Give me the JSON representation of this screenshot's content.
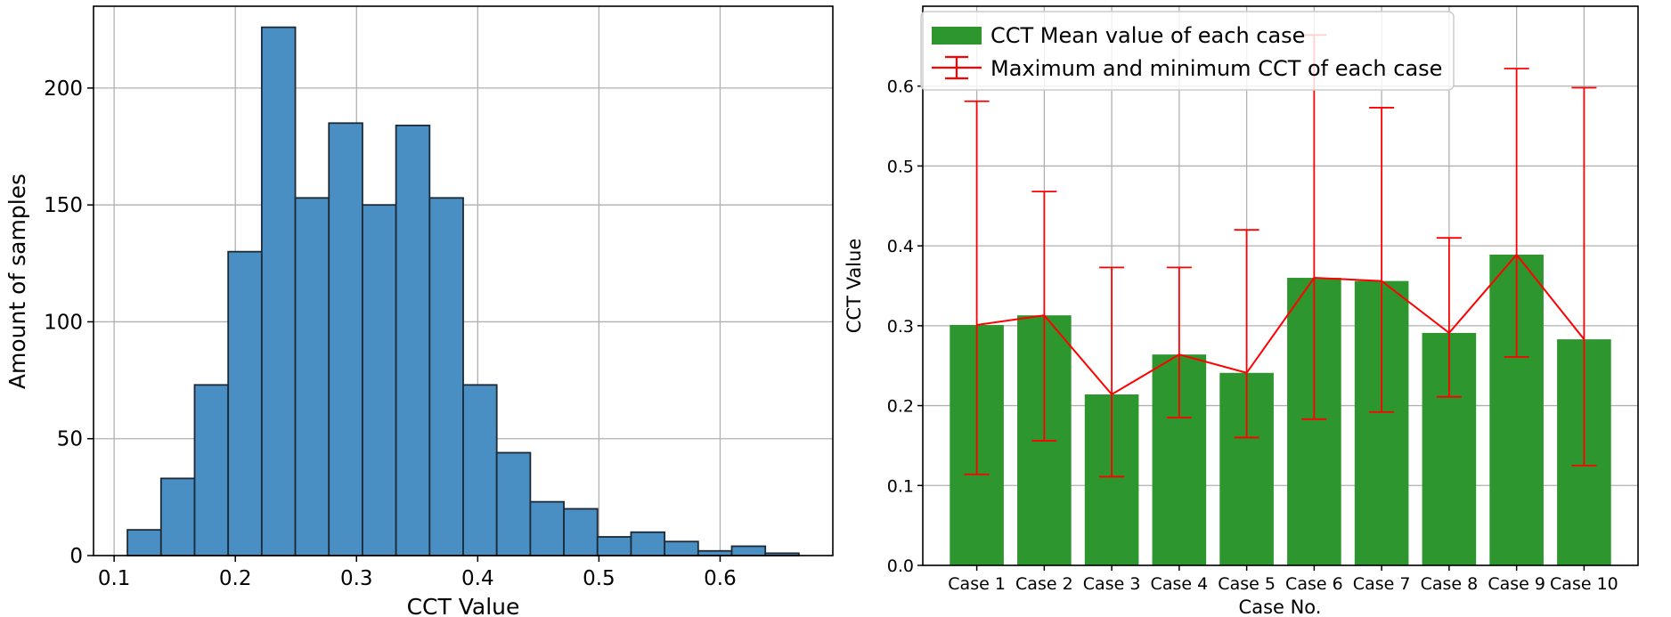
{
  "chart_data": [
    {
      "type": "histogram",
      "title": "",
      "xlabel": "CCT Value",
      "ylabel": "Amount of samples",
      "xlim": [
        0.083,
        0.693
      ],
      "ylim": [
        0,
        235
      ],
      "xticks": [
        "0.1",
        "0.2",
        "0.3",
        "0.4",
        "0.5",
        "0.6"
      ],
      "xtick_values": [
        0.1,
        0.2,
        0.3,
        0.4,
        0.5,
        0.6
      ],
      "yticks": [
        "0",
        "50",
        "100",
        "150",
        "200"
      ],
      "ytick_values": [
        0,
        50,
        100,
        150,
        200
      ],
      "grid": true,
      "bin_edges": [
        0.111,
        0.1387,
        0.1664,
        0.1941,
        0.2218,
        0.2495,
        0.2772,
        0.3049,
        0.3326,
        0.3603,
        0.388,
        0.4157,
        0.4434,
        0.4711,
        0.4988,
        0.5265,
        0.5542,
        0.5819,
        0.6096,
        0.6373,
        0.665
      ],
      "counts": [
        11,
        33,
        73,
        130,
        226,
        153,
        185,
        150,
        184,
        153,
        73,
        44,
        23,
        20,
        8,
        10,
        6,
        2,
        4,
        1
      ],
      "color": "#4a8fc4"
    },
    {
      "type": "bar",
      "title": "",
      "xlabel": "Case No.",
      "ylabel": "CCT Value",
      "categories": [
        "Case 1",
        "Case 2",
        "Case 3",
        "Case 4",
        "Case 5",
        "Case 6",
        "Case 7",
        "Case 8",
        "Case 9",
        "Case 10"
      ],
      "ylim": [
        0,
        0.7
      ],
      "yticks": [
        "0.0",
        "0.1",
        "0.2",
        "0.3",
        "0.4",
        "0.5",
        "0.6"
      ],
      "ytick_values": [
        0,
        0.1,
        0.2,
        0.3,
        0.4,
        0.5,
        0.6
      ],
      "grid": true,
      "legend_position": "top-left",
      "series": [
        {
          "name": "CCT Mean value of each case",
          "values": [
            0.301,
            0.313,
            0.214,
            0.264,
            0.241,
            0.36,
            0.356,
            0.291,
            0.389,
            0.283
          ],
          "color": "#2e962e"
        },
        {
          "name": "Maximum and minimum CCT of each case",
          "kind": "errorbar-line",
          "mean": [
            0.301,
            0.313,
            0.214,
            0.264,
            0.241,
            0.36,
            0.356,
            0.291,
            0.389,
            0.283
          ],
          "min": [
            0.114,
            0.156,
            0.111,
            0.185,
            0.16,
            0.183,
            0.192,
            0.211,
            0.261,
            0.125
          ],
          "max": [
            0.581,
            0.468,
            0.373,
            0.373,
            0.42,
            0.664,
            0.573,
            0.41,
            0.622,
            0.598
          ],
          "color": "#ff0000"
        }
      ]
    }
  ]
}
